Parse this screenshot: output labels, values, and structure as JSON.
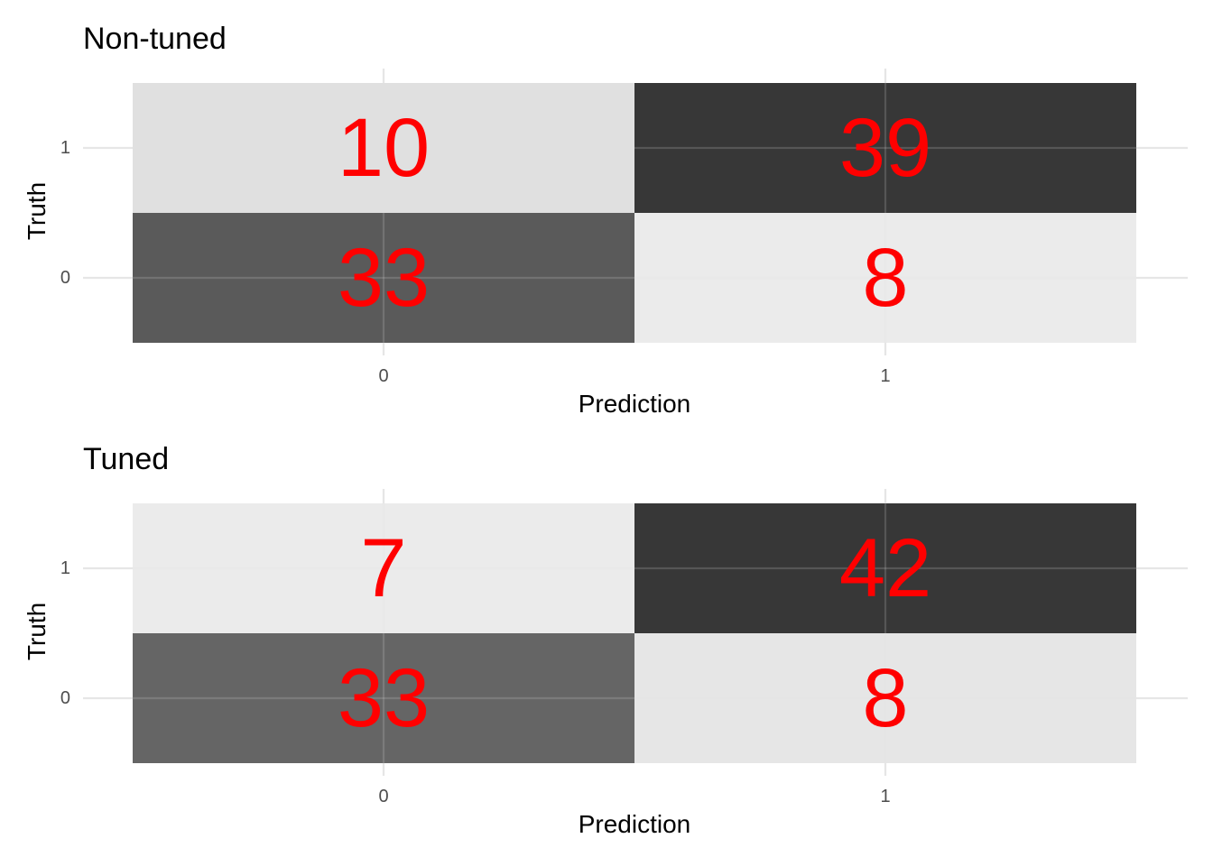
{
  "chart_data": [
    {
      "type": "heatmap",
      "title": "Non-tuned",
      "xlabel": "Prediction",
      "ylabel": "Truth",
      "x_categories": [
        "0",
        "1"
      ],
      "y_categories": [
        "0",
        "1"
      ],
      "cells": [
        {
          "prediction": "0",
          "truth": "1",
          "value": 10
        },
        {
          "prediction": "1",
          "truth": "1",
          "value": 39
        },
        {
          "prediction": "0",
          "truth": "0",
          "value": 33
        },
        {
          "prediction": "1",
          "truth": "0",
          "value": 8
        }
      ],
      "fill_low_color": "#ebebeb",
      "fill_high_color": "#333333",
      "label_color": "#ff0000",
      "grid": true,
      "legend": "none"
    },
    {
      "type": "heatmap",
      "title": "Tuned",
      "xlabel": "Prediction",
      "ylabel": "Truth",
      "x_categories": [
        "0",
        "1"
      ],
      "y_categories": [
        "0",
        "1"
      ],
      "cells": [
        {
          "prediction": "0",
          "truth": "1",
          "value": 7
        },
        {
          "prediction": "1",
          "truth": "1",
          "value": 42
        },
        {
          "prediction": "0",
          "truth": "0",
          "value": 33
        },
        {
          "prediction": "1",
          "truth": "0",
          "value": 8
        }
      ],
      "fill_low_color": "#ebebeb",
      "fill_high_color": "#333333",
      "label_color": "#ff0000",
      "grid": true,
      "legend": "none"
    }
  ]
}
